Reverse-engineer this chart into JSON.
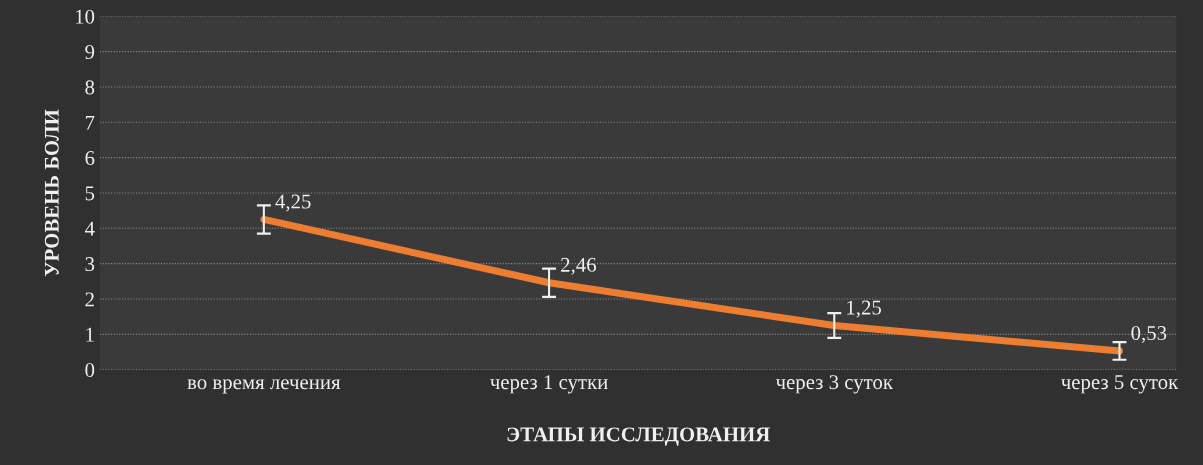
{
  "chart_data": {
    "type": "line",
    "xlabel": "ЭТАПЫ ИССЛЕДОВАНИЯ",
    "ylabel": "УРОВЕНЬ БОЛИ",
    "categories": [
      "во время лечения",
      "через 1 сутки",
      "через 3 суток",
      "через 5 суток"
    ],
    "series": [
      {
        "color": "#ed7d31",
        "values": [
          4.25,
          2.46,
          1.25,
          0.53
        ],
        "errors": [
          0.4,
          0.4,
          0.35,
          0.25
        ],
        "value_labels": [
          "4,25",
          "2,46",
          "1,25",
          "0,53"
        ]
      }
    ],
    "ylim": [
      0,
      10
    ],
    "yticks": [
      0,
      1,
      2,
      3,
      4,
      5,
      6,
      7,
      8,
      9,
      10
    ],
    "grid": "y",
    "marker": "none",
    "line_style": "solid"
  }
}
